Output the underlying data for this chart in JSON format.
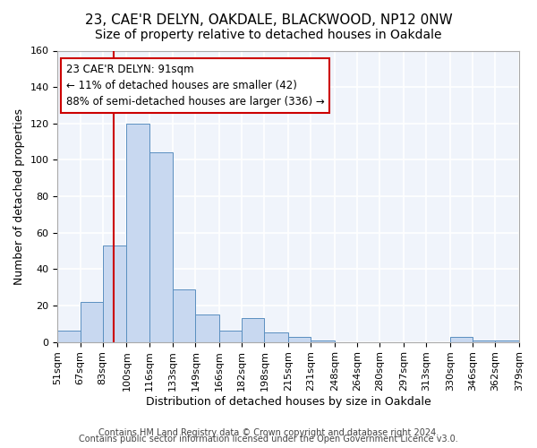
{
  "title": "23, CAE'R DELYN, OAKDALE, BLACKWOOD, NP12 0NW",
  "subtitle": "Size of property relative to detached houses in Oakdale",
  "xlabel": "Distribution of detached houses by size in Oakdale",
  "ylabel": "Number of detached properties",
  "bar_color": "#c8d8f0",
  "bar_edge_color": "#5a8fc0",
  "background_color": "#f0f4fb",
  "grid_color": "#ffffff",
  "vline_x": 91,
  "vline_color": "#cc0000",
  "bin_edges": [
    51,
    67,
    83,
    100,
    116,
    133,
    149,
    166,
    182,
    198,
    215,
    231,
    248,
    264,
    280,
    297,
    313,
    330,
    346,
    362,
    379
  ],
  "bin_labels": [
    "51sqm",
    "67sqm",
    "83sqm",
    "100sqm",
    "116sqm",
    "133sqm",
    "149sqm",
    "166sqm",
    "182sqm",
    "198sqm",
    "215sqm",
    "231sqm",
    "248sqm",
    "264sqm",
    "280sqm",
    "297sqm",
    "313sqm",
    "330sqm",
    "346sqm",
    "362sqm",
    "379sqm"
  ],
  "counts": [
    6,
    22,
    53,
    120,
    104,
    29,
    15,
    6,
    13,
    5,
    3,
    1,
    0,
    0,
    0,
    0,
    0,
    3,
    1,
    1
  ],
  "ylim": [
    0,
    160
  ],
  "yticks": [
    0,
    20,
    40,
    60,
    80,
    100,
    120,
    140,
    160
  ],
  "annotation_box_text": "23 CAE'R DELYN: 91sqm\n← 11% of detached houses are smaller (42)\n88% of semi-detached houses are larger (336) →",
  "footer1": "Contains HM Land Registry data © Crown copyright and database right 2024.",
  "footer2": "Contains public sector information licensed under the Open Government Licence v3.0.",
  "title_fontsize": 11,
  "subtitle_fontsize": 10,
  "axis_label_fontsize": 9,
  "tick_fontsize": 8,
  "annotation_fontsize": 8.5,
  "footer_fontsize": 7
}
